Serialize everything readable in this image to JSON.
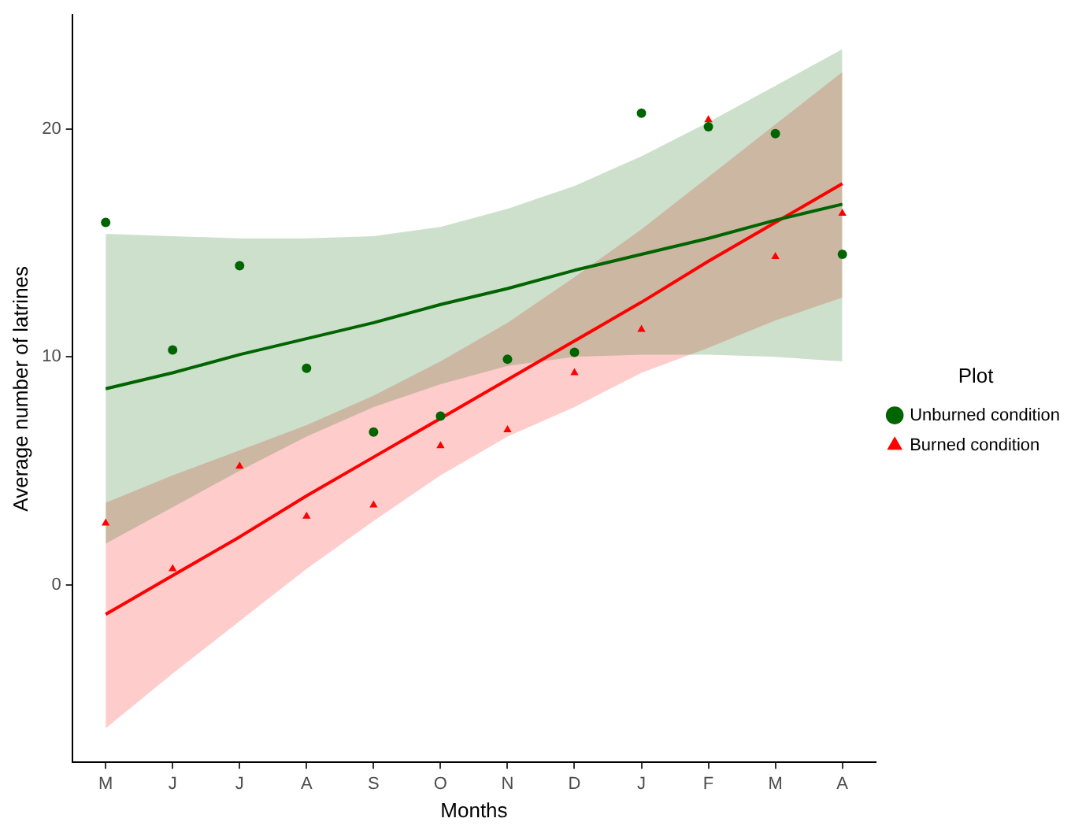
{
  "chart_data": {
    "type": "scatter",
    "xlabel": "Months",
    "ylabel": "Average number of latrines",
    "legend_title": "Plot",
    "categories": [
      "M",
      "J",
      "J",
      "A",
      "S",
      "O",
      "N",
      "D",
      "J",
      "F",
      "M",
      "A"
    ],
    "series": [
      {
        "name": "Unburned condition",
        "marker": "circle",
        "color": "#006400",
        "values": [
          15.9,
          10.3,
          14.0,
          9.5,
          6.7,
          7.4,
          9.9,
          10.2,
          20.7,
          20.1,
          19.8,
          14.5
        ]
      },
      {
        "name": "Burned condition",
        "marker": "triangle",
        "color": "#ff0000",
        "values": [
          2.7,
          0.7,
          5.2,
          3.0,
          3.5,
          6.1,
          6.8,
          9.3,
          11.2,
          20.4,
          14.4,
          16.3
        ]
      },
      {
        "type": "line",
        "color": "#006400",
        "values": [
          8.6,
          9.3,
          10.1,
          10.8,
          11.5,
          12.3,
          13.0,
          13.8,
          14.5,
          15.2,
          16.0,
          16.7
        ],
        "lower": [
          1.8,
          3.4,
          5.0,
          6.5,
          7.8,
          8.8,
          9.6,
          10.0,
          10.1,
          10.1,
          10.0,
          9.8
        ],
        "upper": [
          15.4,
          15.3,
          15.2,
          15.2,
          15.3,
          15.7,
          16.5,
          17.5,
          18.8,
          20.3,
          21.9,
          23.5
        ]
      },
      {
        "type": "line",
        "color": "#ff0000",
        "values": [
          -1.3,
          0.4,
          2.1,
          3.9,
          5.6,
          7.3,
          9.0,
          10.7,
          12.4,
          14.2,
          15.9,
          17.6
        ],
        "lower": [
          -6.3,
          -3.9,
          -1.6,
          0.7,
          2.8,
          4.8,
          6.5,
          7.8,
          9.3,
          10.4,
          11.6,
          12.6
        ],
        "upper": [
          3.6,
          4.8,
          5.9,
          7.0,
          8.3,
          9.8,
          11.5,
          13.5,
          15.6,
          17.9,
          20.2,
          22.5
        ]
      }
    ],
    "ylim": [
      -7.8,
      25.0
    ],
    "yticks": [
      0,
      10,
      20
    ],
    "grid": false,
    "legend": "right",
    "line_style": "solid"
  }
}
